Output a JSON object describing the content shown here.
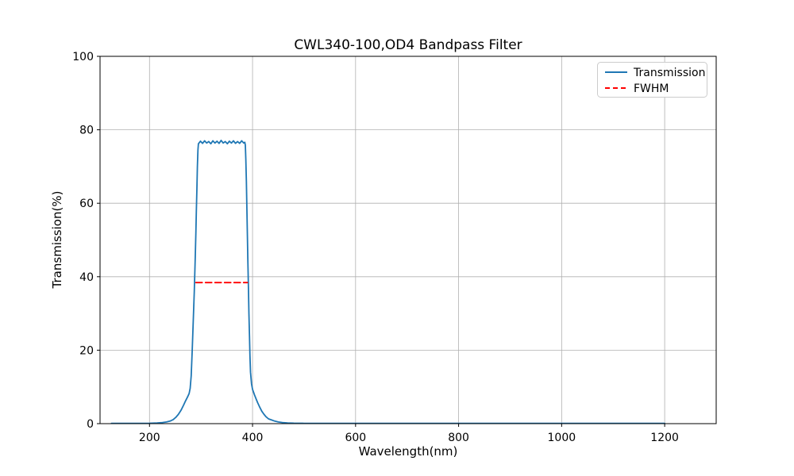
{
  "chart_data": {
    "type": "line",
    "title": "CWL340-100,OD4 Bandpass Filter",
    "xlabel": "Wavelength(nm)",
    "ylabel": "Transmission(%)",
    "xlim": [
      104,
      1300
    ],
    "ylim": [
      0,
      100
    ],
    "xticks": [
      200,
      400,
      600,
      800,
      1000,
      1200
    ],
    "yticks": [
      0,
      20,
      40,
      60,
      80,
      100
    ],
    "grid": true,
    "grid_color": "#b0b0b0",
    "background_color": "#ffffff",
    "spine_color": "#000000",
    "legend_position": "upper right",
    "series": [
      {
        "name": "Transmission",
        "color": "#1f77b4",
        "style": "solid",
        "points": [
          [
            126,
            0.08
          ],
          [
            160,
            0.08
          ],
          [
            200,
            0.1
          ],
          [
            215,
            0.18
          ],
          [
            225,
            0.3
          ],
          [
            233,
            0.45
          ],
          [
            240,
            0.7
          ],
          [
            246,
            1.1
          ],
          [
            251,
            1.7
          ],
          [
            256,
            2.5
          ],
          [
            261,
            3.6
          ],
          [
            266,
            5.0
          ],
          [
            270,
            6.2
          ],
          [
            274,
            7.3
          ],
          [
            277,
            8.2
          ],
          [
            279,
            9.6
          ],
          [
            281,
            13
          ],
          [
            283,
            20
          ],
          [
            285,
            28
          ],
          [
            287,
            36
          ],
          [
            289,
            46
          ],
          [
            290,
            52
          ],
          [
            291,
            58
          ],
          [
            292,
            64
          ],
          [
            293,
            70
          ],
          [
            294,
            74.5
          ],
          [
            295,
            76.2
          ],
          [
            299,
            76.9
          ],
          [
            303,
            76.3
          ],
          [
            307,
            77.0
          ],
          [
            311,
            76.4
          ],
          [
            315,
            76.8
          ],
          [
            319,
            76.2
          ],
          [
            323,
            77.0
          ],
          [
            327,
            76.4
          ],
          [
            331,
            76.9
          ],
          [
            335,
            76.3
          ],
          [
            339,
            77.1
          ],
          [
            343,
            76.4
          ],
          [
            347,
            76.8
          ],
          [
            351,
            76.2
          ],
          [
            355,
            76.9
          ],
          [
            359,
            76.4
          ],
          [
            363,
            77.0
          ],
          [
            367,
            76.3
          ],
          [
            371,
            76.8
          ],
          [
            375,
            76.3
          ],
          [
            379,
            77.0
          ],
          [
            383,
            76.4
          ],
          [
            385,
            76.6
          ],
          [
            386,
            75.8
          ],
          [
            387,
            72
          ],
          [
            388,
            66
          ],
          [
            389,
            59
          ],
          [
            390,
            51
          ],
          [
            391,
            44
          ],
          [
            392,
            37
          ],
          [
            393,
            30
          ],
          [
            394,
            24
          ],
          [
            395,
            18.5
          ],
          [
            396,
            14
          ],
          [
            398,
            10.8
          ],
          [
            400,
            9.3
          ],
          [
            402,
            8.5
          ],
          [
            404,
            7.8
          ],
          [
            407,
            6.7
          ],
          [
            410,
            5.7
          ],
          [
            414,
            4.5
          ],
          [
            418,
            3.4
          ],
          [
            422,
            2.6
          ],
          [
            426,
            1.9
          ],
          [
            431,
            1.3
          ],
          [
            437,
            1.0
          ],
          [
            443,
            0.7
          ],
          [
            450,
            0.45
          ],
          [
            458,
            0.3
          ],
          [
            468,
            0.2
          ],
          [
            480,
            0.13
          ],
          [
            500,
            0.09
          ],
          [
            550,
            0.08
          ],
          [
            600,
            0.08
          ],
          [
            650,
            0.08
          ],
          [
            700,
            0.08
          ],
          [
            750,
            0.08
          ],
          [
            800,
            0.08
          ],
          [
            850,
            0.08
          ],
          [
            900,
            0.08
          ],
          [
            950,
            0.08
          ],
          [
            1000,
            0.08
          ],
          [
            1050,
            0.08
          ],
          [
            1100,
            0.08
          ],
          [
            1150,
            0.08
          ],
          [
            1200,
            0.08
          ]
        ]
      },
      {
        "name": "FWHM",
        "color": "#ff0000",
        "style": "dashed",
        "points": [
          [
            290,
            38.4
          ],
          [
            390,
            38.4
          ]
        ]
      }
    ]
  },
  "legend": {
    "items": [
      {
        "label": "Transmission"
      },
      {
        "label": "FWHM"
      }
    ]
  }
}
